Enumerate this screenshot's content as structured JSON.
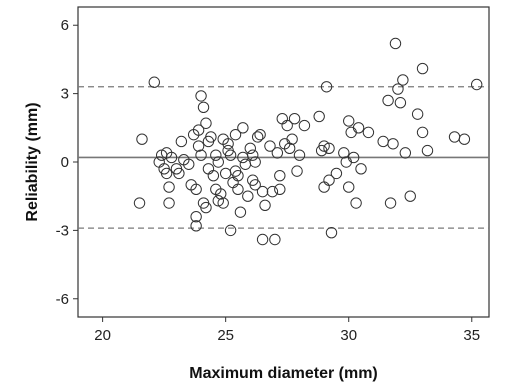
{
  "chart_data": {
    "type": "scatter",
    "xlabel": "Maximum diameter (mm)",
    "ylabel": "Reliability (mm)",
    "xlim": [
      19.0,
      35.7
    ],
    "ylim": [
      -6.8,
      6.8
    ],
    "xticks": [
      20,
      25,
      30,
      35
    ],
    "yticks": [
      -6,
      -3,
      0,
      3,
      6
    ],
    "xtick_labels": [
      "20",
      "25",
      "30",
      "35"
    ],
    "ytick_labels": [
      "-6",
      "-3",
      "0",
      "3",
      "6"
    ],
    "reference_lines": [
      {
        "name": "mean",
        "y": 0.2,
        "style": "solid"
      },
      {
        "name": "upper limit",
        "y": 3.3,
        "style": "dashed"
      },
      {
        "name": "lower limit",
        "y": -2.9,
        "style": "dashed"
      }
    ],
    "grid": false,
    "legend": "none",
    "marker": "open-circle",
    "points": [
      [
        21.5,
        -1.8
      ],
      [
        21.6,
        1.0
      ],
      [
        22.1,
        3.5
      ],
      [
        22.3,
        0.0
      ],
      [
        22.4,
        0.3
      ],
      [
        22.5,
        -0.3
      ],
      [
        22.6,
        0.4
      ],
      [
        22.6,
        -0.5
      ],
      [
        22.7,
        -1.1
      ],
      [
        22.7,
        -1.8
      ],
      [
        22.8,
        0.2
      ],
      [
        23.0,
        -0.3
      ],
      [
        23.1,
        -0.5
      ],
      [
        23.2,
        0.9
      ],
      [
        23.3,
        0.1
      ],
      [
        23.5,
        -0.1
      ],
      [
        23.6,
        -1.0
      ],
      [
        23.7,
        1.2
      ],
      [
        23.8,
        -1.2
      ],
      [
        23.8,
        -2.4
      ],
      [
        23.8,
        -2.8
      ],
      [
        23.9,
        0.7
      ],
      [
        23.9,
        1.4
      ],
      [
        24.0,
        2.9
      ],
      [
        24.0,
        0.3
      ],
      [
        24.1,
        2.4
      ],
      [
        24.1,
        -1.8
      ],
      [
        24.2,
        -2.0
      ],
      [
        24.2,
        1.7
      ],
      [
        24.3,
        0.9
      ],
      [
        24.3,
        -0.3
      ],
      [
        24.4,
        1.1
      ],
      [
        24.5,
        -0.6
      ],
      [
        24.6,
        -1.2
      ],
      [
        24.6,
        0.3
      ],
      [
        24.7,
        0.0
      ],
      [
        24.7,
        -1.7
      ],
      [
        24.8,
        -1.4
      ],
      [
        24.9,
        -1.8
      ],
      [
        24.9,
        1.0
      ],
      [
        25.0,
        -0.5
      ],
      [
        25.1,
        0.8
      ],
      [
        25.1,
        0.5
      ],
      [
        25.2,
        -3.0
      ],
      [
        25.2,
        0.3
      ],
      [
        25.3,
        -0.9
      ],
      [
        25.4,
        1.2
      ],
      [
        25.4,
        -0.4
      ],
      [
        25.5,
        -1.2
      ],
      [
        25.5,
        -0.6
      ],
      [
        25.6,
        -2.2
      ],
      [
        25.7,
        1.5
      ],
      [
        25.7,
        0.2
      ],
      [
        25.8,
        -0.1
      ],
      [
        25.9,
        -1.5
      ],
      [
        26.0,
        0.6
      ],
      [
        26.1,
        0.3
      ],
      [
        26.1,
        -0.8
      ],
      [
        26.2,
        -1.0
      ],
      [
        26.2,
        0.0
      ],
      [
        26.3,
        1.1
      ],
      [
        26.4,
        1.2
      ],
      [
        26.5,
        -1.3
      ],
      [
        26.5,
        -3.4
      ],
      [
        26.6,
        -1.9
      ],
      [
        26.8,
        0.7
      ],
      [
        26.9,
        -1.3
      ],
      [
        27.0,
        -3.4
      ],
      [
        27.1,
        0.4
      ],
      [
        27.2,
        -1.2
      ],
      [
        27.2,
        -0.6
      ],
      [
        27.3,
        1.9
      ],
      [
        27.4,
        0.8
      ],
      [
        27.5,
        1.6
      ],
      [
        27.6,
        0.6
      ],
      [
        27.7,
        1.0
      ],
      [
        27.8,
        1.9
      ],
      [
        27.9,
        -0.4
      ],
      [
        28.0,
        0.3
      ],
      [
        28.2,
        1.6
      ],
      [
        28.8,
        2.0
      ],
      [
        28.9,
        0.5
      ],
      [
        29.0,
        0.7
      ],
      [
        29.0,
        -1.1
      ],
      [
        29.1,
        3.3
      ],
      [
        29.2,
        0.6
      ],
      [
        29.2,
        -0.8
      ],
      [
        29.3,
        -3.1
      ],
      [
        29.5,
        -0.5
      ],
      [
        29.8,
        0.4
      ],
      [
        29.9,
        0.0
      ],
      [
        30.0,
        1.8
      ],
      [
        30.0,
        -1.1
      ],
      [
        30.1,
        1.3
      ],
      [
        30.2,
        0.2
      ],
      [
        30.3,
        -1.8
      ],
      [
        30.4,
        1.5
      ],
      [
        30.5,
        -0.3
      ],
      [
        30.8,
        1.3
      ],
      [
        31.4,
        0.9
      ],
      [
        31.6,
        2.7
      ],
      [
        31.7,
        -1.8
      ],
      [
        31.8,
        0.8
      ],
      [
        31.9,
        5.2
      ],
      [
        32.0,
        3.2
      ],
      [
        32.1,
        2.6
      ],
      [
        32.2,
        3.6
      ],
      [
        32.3,
        0.4
      ],
      [
        32.5,
        -1.5
      ],
      [
        32.8,
        2.1
      ],
      [
        33.0,
        4.1
      ],
      [
        33.0,
        1.3
      ],
      [
        33.2,
        0.5
      ],
      [
        34.3,
        1.1
      ],
      [
        34.7,
        1.0
      ],
      [
        35.2,
        3.4
      ]
    ]
  }
}
